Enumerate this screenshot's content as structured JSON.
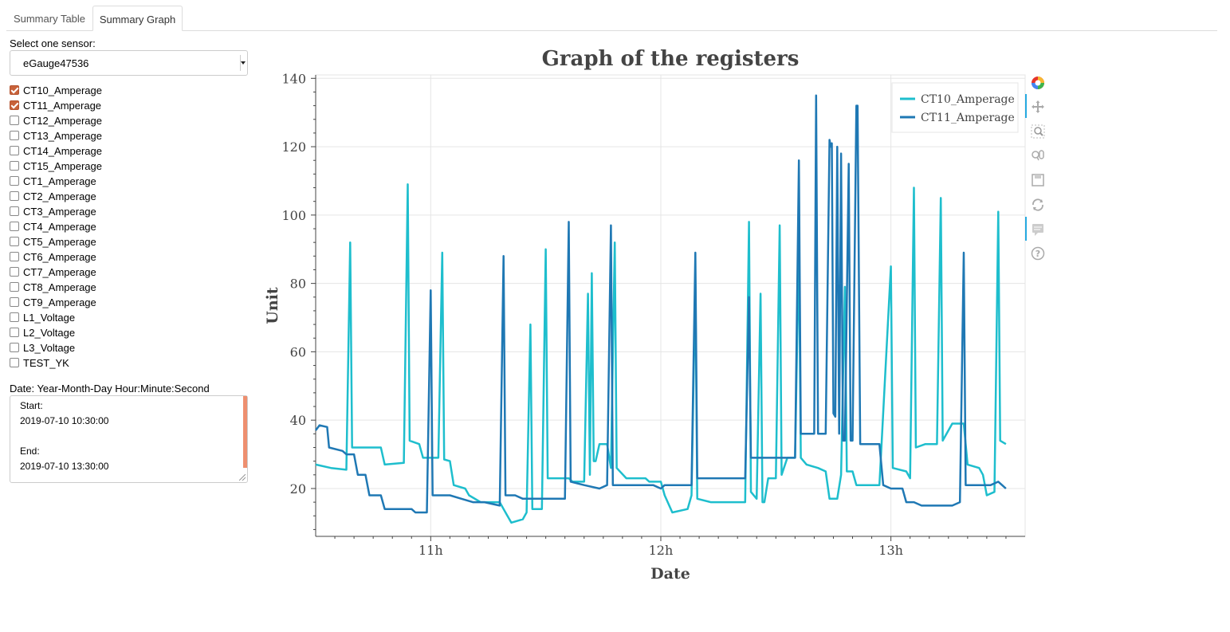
{
  "tabs": [
    {
      "label": "Summary Table",
      "active": false
    },
    {
      "label": "Summary Graph",
      "active": true
    }
  ],
  "sensor": {
    "label": "Select one sensor:",
    "selected": "eGauge47536"
  },
  "registers": [
    {
      "label": "CT10_Amperage",
      "checked": true
    },
    {
      "label": "CT11_Amperage",
      "checked": true
    },
    {
      "label": "CT12_Amperage",
      "checked": false
    },
    {
      "label": "CT13_Amperage",
      "checked": false
    },
    {
      "label": "CT14_Amperage",
      "checked": false
    },
    {
      "label": "CT15_Amperage",
      "checked": false
    },
    {
      "label": "CT1_Amperage",
      "checked": false
    },
    {
      "label": "CT2_Amperage",
      "checked": false
    },
    {
      "label": "CT3_Amperage",
      "checked": false
    },
    {
      "label": "CT4_Amperage",
      "checked": false
    },
    {
      "label": "CT5_Amperage",
      "checked": false
    },
    {
      "label": "CT6_Amperage",
      "checked": false
    },
    {
      "label": "CT7_Amperage",
      "checked": false
    },
    {
      "label": "CT8_Amperage",
      "checked": false
    },
    {
      "label": "CT9_Amperage",
      "checked": false
    },
    {
      "label": "L1_Voltage",
      "checked": false
    },
    {
      "label": "L2_Voltage",
      "checked": false
    },
    {
      "label": "L3_Voltage",
      "checked": false
    },
    {
      "label": "TEST_YK",
      "checked": false
    }
  ],
  "date": {
    "label": "Date: Year-Month-Day Hour:Minute:Second",
    "start_label": "Start:",
    "start_value": "2019-07-10 10:30:00",
    "end_label": "End:",
    "end_value": "2019-07-10 13:30:00"
  },
  "toolbar": {
    "tools": [
      "bokeh-logo-icon",
      "pan-icon",
      "box-zoom-icon",
      "wheel-zoom-icon",
      "save-icon",
      "reset-icon",
      "hover-icon",
      "help-icon"
    ]
  },
  "chart_data": {
    "type": "line",
    "title": "Graph of the registers",
    "xlabel": "Date",
    "ylabel": "Unit",
    "xlim": [
      "10:30",
      "13:35"
    ],
    "ylim": [
      6,
      141
    ],
    "x_ticks": [
      "11h",
      "12h",
      "13h"
    ],
    "y_ticks": [
      20,
      40,
      60,
      80,
      100,
      120,
      140
    ],
    "grid": true,
    "legend": "top-right",
    "series": [
      {
        "name": "CT10_Amperage",
        "color": "#1ebecd",
        "points": [
          [
            "10:30",
            27
          ],
          [
            "10:34",
            26
          ],
          [
            "10:38",
            25.5
          ],
          [
            "10:39",
            92
          ],
          [
            "10:39.5",
            32
          ],
          [
            "10:44",
            32
          ],
          [
            "10:47",
            32
          ],
          [
            "10:48",
            27
          ],
          [
            "10:53",
            27.5
          ],
          [
            "10:54",
            109
          ],
          [
            "10:54.5",
            34
          ],
          [
            "10:57",
            33
          ],
          [
            "10:57.5",
            31
          ],
          [
            "10:58",
            29
          ],
          [
            "11:02",
            29
          ],
          [
            "11:03",
            89
          ],
          [
            "11:03.5",
            28.5
          ],
          [
            "11:05",
            28
          ],
          [
            "11:06",
            21
          ],
          [
            "11:09",
            20
          ],
          [
            "11:10",
            18
          ],
          [
            "11:13",
            16
          ],
          [
            "11:18",
            16
          ],
          [
            "11:19",
            14
          ],
          [
            "11:21",
            10
          ],
          [
            "11:24",
            11
          ],
          [
            "11:25",
            13
          ],
          [
            "11:26",
            68
          ],
          [
            "11:26.5",
            14
          ],
          [
            "11:29",
            14
          ],
          [
            "11:30",
            90
          ],
          [
            "11:30.5",
            23
          ],
          [
            "11:36",
            23
          ],
          [
            "11:37",
            22
          ],
          [
            "11:40",
            22
          ],
          [
            "11:41",
            77
          ],
          [
            "11:41.5",
            24
          ],
          [
            "11:42",
            83
          ],
          [
            "11:42.5",
            28
          ],
          [
            "11:43",
            28
          ],
          [
            "11:44",
            33
          ],
          [
            "11:46",
            33
          ],
          [
            "11:47",
            26
          ],
          [
            "11:48",
            92
          ],
          [
            "11:48.5",
            26
          ],
          [
            "11:51",
            23
          ],
          [
            "11:56",
            23
          ],
          [
            "11:57",
            22
          ],
          [
            "12:00",
            22
          ],
          [
            "12:01",
            18
          ],
          [
            "12:03",
            13
          ],
          [
            "12:07",
            14
          ],
          [
            "12:08",
            18
          ],
          [
            "12:09",
            81
          ],
          [
            "12:09.5",
            17
          ],
          [
            "12:13",
            16
          ],
          [
            "12:17",
            16
          ],
          [
            "12:20",
            16
          ],
          [
            "12:22",
            16
          ],
          [
            "12:23",
            98
          ],
          [
            "12:23.5",
            19
          ],
          [
            "12:25",
            17
          ],
          [
            "12:26",
            77
          ],
          [
            "12:26.5",
            16
          ],
          [
            "12:27",
            16
          ],
          [
            "12:28",
            23
          ],
          [
            "12:30",
            23
          ],
          [
            "12:31",
            97
          ],
          [
            "12:31.5",
            24
          ],
          [
            "12:33",
            29
          ],
          [
            "12:35",
            29
          ],
          [
            "12:36",
            91
          ],
          [
            "12:36.5",
            29
          ],
          [
            "12:38",
            27
          ],
          [
            "12:41",
            26
          ],
          [
            "12:43",
            25
          ],
          [
            "12:44",
            17
          ],
          [
            "12:46",
            17
          ],
          [
            "12:47",
            24
          ],
          [
            "12:48",
            79
          ],
          [
            "12:48.5",
            25
          ],
          [
            "12:50",
            25
          ],
          [
            "12:51",
            21
          ],
          [
            "12:55",
            21
          ],
          [
            "12:57",
            21
          ],
          [
            "13:00",
            85
          ],
          [
            "13:00.5",
            26
          ],
          [
            "13:04",
            25
          ],
          [
            "13:05",
            23
          ],
          [
            "13:06",
            108
          ],
          [
            "13:06.5",
            32
          ],
          [
            "13:09",
            33
          ],
          [
            "13:12",
            33
          ],
          [
            "13:13",
            105
          ],
          [
            "13:13.5",
            34
          ],
          [
            "13:16",
            39
          ],
          [
            "13:19",
            39
          ],
          [
            "13:20",
            27
          ],
          [
            "13:23",
            26
          ],
          [
            "13:24",
            24
          ],
          [
            "13:25",
            18
          ],
          [
            "13:27",
            19
          ],
          [
            "13:28",
            101
          ],
          [
            "13:28.5",
            34
          ],
          [
            "13:30",
            33
          ]
        ]
      },
      {
        "name": "CT11_Amperage",
        "color": "#1f78b4",
        "points": [
          [
            "10:30",
            37
          ],
          [
            "10:31",
            38.5
          ],
          [
            "10:33",
            38
          ],
          [
            "10:33.5",
            32
          ],
          [
            "10:37",
            31
          ],
          [
            "10:38",
            30
          ],
          [
            "10:40",
            30
          ],
          [
            "10:41",
            24
          ],
          [
            "10:43",
            24
          ],
          [
            "10:44",
            18
          ],
          [
            "10:46",
            18
          ],
          [
            "10:47",
            18
          ],
          [
            "10:48",
            14
          ],
          [
            "10:55",
            14
          ],
          [
            "10:56",
            13
          ],
          [
            "10:59",
            13
          ],
          [
            "11:00",
            78
          ],
          [
            "11:00.5",
            18
          ],
          [
            "11:05",
            18
          ],
          [
            "11:08",
            17
          ],
          [
            "11:11",
            16
          ],
          [
            "11:14",
            16
          ],
          [
            "11:18",
            15
          ],
          [
            "11:19",
            88
          ],
          [
            "11:19.5",
            18
          ],
          [
            "11:22",
            18
          ],
          [
            "11:24",
            17
          ],
          [
            "11:27",
            17
          ],
          [
            "11:29",
            17
          ],
          [
            "11:33",
            17
          ],
          [
            "11:35",
            17
          ],
          [
            "11:36",
            98
          ],
          [
            "11:36.5",
            22
          ],
          [
            "11:40",
            21
          ],
          [
            "11:44",
            20
          ],
          [
            "11:46",
            21
          ],
          [
            "11:47",
            97
          ],
          [
            "11:47.5",
            21
          ],
          [
            "11:53",
            21
          ],
          [
            "11:58",
            21
          ],
          [
            "12:00",
            20
          ],
          [
            "12:01",
            21
          ],
          [
            "12:05",
            21
          ],
          [
            "12:08",
            21
          ],
          [
            "12:09",
            89
          ],
          [
            "12:09.5",
            23
          ],
          [
            "12:14",
            23
          ],
          [
            "12:18",
            23
          ],
          [
            "12:22",
            23
          ],
          [
            "12:23",
            76
          ],
          [
            "12:23.5",
            29
          ],
          [
            "12:27",
            29
          ],
          [
            "12:31",
            29
          ],
          [
            "12:35",
            29
          ],
          [
            "12:36",
            116
          ],
          [
            "12:36.5",
            36
          ],
          [
            "12:38",
            36
          ],
          [
            "12:40",
            36
          ],
          [
            "12:40.5",
            135
          ],
          [
            "12:41",
            36
          ],
          [
            "12:42",
            36
          ],
          [
            "12:43",
            36
          ],
          [
            "12:44",
            122
          ],
          [
            "12:44.3",
            120
          ],
          [
            "12:44.6",
            121
          ],
          [
            "12:45",
            42
          ],
          [
            "12:45.5",
            41
          ],
          [
            "12:46",
            120
          ],
          [
            "12:46.5",
            36
          ],
          [
            "12:47",
            118
          ],
          [
            "12:47.5",
            34
          ],
          [
            "12:48",
            34
          ],
          [
            "12:49",
            115
          ],
          [
            "12:49.5",
            34
          ],
          [
            "12:50",
            34
          ],
          [
            "12:51",
            132
          ],
          [
            "12:51.3",
            132
          ],
          [
            "12:52",
            33
          ],
          [
            "12:55",
            33
          ],
          [
            "12:57",
            33
          ],
          [
            "12:58",
            21
          ],
          [
            "13:00",
            20
          ],
          [
            "13:03",
            20
          ],
          [
            "13:04",
            16
          ],
          [
            "13:06",
            16
          ],
          [
            "13:08",
            15
          ],
          [
            "13:11",
            15
          ],
          [
            "13:14",
            15
          ],
          [
            "13:16",
            15
          ],
          [
            "13:18",
            16
          ],
          [
            "13:19",
            89
          ],
          [
            "13:19.5",
            21
          ],
          [
            "13:22",
            21
          ],
          [
            "13:25",
            21
          ],
          [
            "13:26",
            21
          ],
          [
            "13:28",
            22
          ],
          [
            "13:29",
            21
          ],
          [
            "13:30",
            20
          ]
        ]
      }
    ]
  }
}
